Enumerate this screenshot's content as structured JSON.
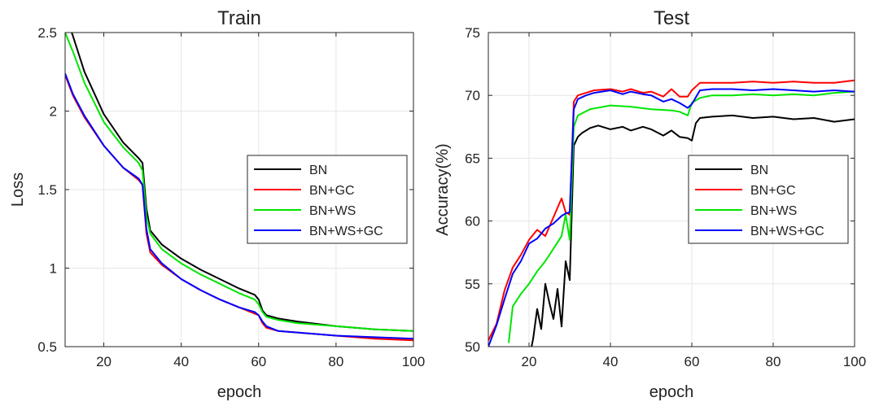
{
  "chart_data": [
    {
      "type": "line",
      "title": "Train",
      "xlabel": "epoch",
      "ylabel": "Loss",
      "xlim": [
        10,
        100
      ],
      "ylim": [
        0.5,
        2.5
      ],
      "xticks": [
        "20",
        "40",
        "60",
        "80",
        "100"
      ],
      "yticks": [
        "0.5",
        "1",
        "1.5",
        "2",
        "2.5"
      ],
      "grid": true,
      "legend_position": "center-right",
      "series": [
        {
          "name": "BN",
          "color": "#000000",
          "x": [
            10,
            12,
            15,
            20,
            25,
            29,
            30,
            31,
            32,
            35,
            40,
            45,
            50,
            55,
            59,
            60,
            61,
            62,
            65,
            70,
            80,
            90,
            100
          ],
          "y": [
            2.62,
            2.48,
            2.25,
            1.98,
            1.8,
            1.7,
            1.67,
            1.38,
            1.24,
            1.15,
            1.06,
            0.99,
            0.93,
            0.87,
            0.83,
            0.8,
            0.73,
            0.7,
            0.68,
            0.66,
            0.63,
            0.61,
            0.6
          ]
        },
        {
          "name": "BN+GC",
          "color": "#ff0000",
          "x": [
            10,
            12,
            15,
            20,
            25,
            29,
            30,
            31,
            32,
            35,
            40,
            45,
            50,
            55,
            59,
            60,
            61,
            62,
            65,
            70,
            80,
            90,
            100
          ],
          "y": [
            2.23,
            2.1,
            1.96,
            1.78,
            1.64,
            1.56,
            1.53,
            1.22,
            1.1,
            1.02,
            0.93,
            0.86,
            0.8,
            0.75,
            0.71,
            0.7,
            0.65,
            0.62,
            0.6,
            0.59,
            0.57,
            0.55,
            0.54
          ]
        },
        {
          "name": "BN+WS",
          "color": "#00e600",
          "x": [
            10,
            12,
            15,
            20,
            25,
            29,
            30,
            31,
            32,
            35,
            40,
            45,
            50,
            55,
            59,
            60,
            61,
            62,
            65,
            70,
            80,
            90,
            100
          ],
          "y": [
            2.5,
            2.38,
            2.18,
            1.93,
            1.77,
            1.67,
            1.62,
            1.33,
            1.22,
            1.12,
            1.03,
            0.96,
            0.9,
            0.84,
            0.8,
            0.77,
            0.72,
            0.69,
            0.67,
            0.65,
            0.63,
            0.61,
            0.6
          ]
        },
        {
          "name": "BN+WS+GC",
          "color": "#0000ff",
          "x": [
            10,
            12,
            15,
            20,
            25,
            29,
            30,
            31,
            32,
            35,
            40,
            45,
            50,
            55,
            59,
            60,
            61,
            62,
            65,
            70,
            80,
            90,
            100
          ],
          "y": [
            2.24,
            2.11,
            1.97,
            1.78,
            1.64,
            1.57,
            1.53,
            1.25,
            1.12,
            1.03,
            0.93,
            0.86,
            0.8,
            0.75,
            0.72,
            0.7,
            0.66,
            0.63,
            0.6,
            0.59,
            0.57,
            0.56,
            0.55
          ]
        }
      ]
    },
    {
      "type": "line",
      "title": "Test",
      "xlabel": "epoch",
      "ylabel": "Accuracy(%)",
      "xlim": [
        10,
        100
      ],
      "ylim": [
        50,
        75
      ],
      "xticks": [
        "20",
        "40",
        "60",
        "80",
        "100"
      ],
      "yticks": [
        "50",
        "55",
        "60",
        "65",
        "70",
        "75"
      ],
      "grid": true,
      "legend_position": "center-right",
      "series": [
        {
          "name": "BN",
          "color": "#000000",
          "x": [
            20,
            21,
            22,
            23,
            24,
            25,
            26,
            27,
            28,
            29,
            30,
            31,
            32,
            33,
            35,
            37,
            40,
            43,
            45,
            48,
            50,
            53,
            55,
            57,
            59,
            60,
            61,
            62,
            65,
            70,
            75,
            80,
            85,
            90,
            95,
            100
          ],
          "y": [
            49.0,
            50.6,
            53.0,
            51.4,
            55.0,
            53.5,
            52.2,
            54.6,
            51.6,
            56.8,
            55.3,
            66.0,
            66.7,
            67.0,
            67.4,
            67.6,
            67.3,
            67.5,
            67.2,
            67.5,
            67.3,
            66.8,
            67.2,
            66.7,
            66.6,
            66.4,
            67.8,
            68.2,
            68.3,
            68.4,
            68.2,
            68.3,
            68.1,
            68.2,
            67.9,
            68.1
          ]
        },
        {
          "name": "BN+GC",
          "color": "#ff0000",
          "x": [
            10,
            12,
            14,
            16,
            18,
            20,
            22,
            24,
            26,
            28,
            29,
            30,
            31,
            32,
            34,
            36,
            40,
            43,
            45,
            48,
            50,
            53,
            55,
            57,
            59,
            60,
            62,
            65,
            70,
            75,
            80,
            85,
            90,
            95,
            100
          ],
          "y": [
            50.5,
            51.8,
            54.5,
            56.3,
            57.3,
            58.5,
            59.3,
            58.8,
            60.3,
            61.8,
            60.7,
            60.5,
            69.5,
            70.0,
            70.2,
            70.4,
            70.5,
            70.3,
            70.5,
            70.2,
            70.3,
            69.9,
            70.5,
            69.9,
            69.9,
            70.4,
            71.0,
            71.0,
            71.0,
            71.1,
            71.0,
            71.1,
            71.0,
            71.0,
            71.2
          ]
        },
        {
          "name": "BN+WS",
          "color": "#00e600",
          "x": [
            15,
            16,
            18,
            20,
            22,
            24,
            26,
            28,
            29,
            30,
            31,
            32,
            35,
            40,
            45,
            50,
            55,
            57,
            59,
            60,
            62,
            65,
            70,
            75,
            80,
            85,
            90,
            95,
            100
          ],
          "y": [
            50.3,
            53.2,
            54.2,
            55.0,
            56.0,
            56.8,
            57.8,
            58.8,
            60.5,
            58.5,
            67.5,
            68.4,
            68.9,
            69.2,
            69.1,
            68.9,
            68.8,
            68.7,
            68.4,
            69.4,
            69.8,
            70.0,
            70.0,
            70.1,
            70.0,
            70.1,
            70.0,
            70.2,
            70.3
          ]
        },
        {
          "name": "BN+WS+GC",
          "color": "#0000ff",
          "x": [
            10,
            12,
            14,
            16,
            18,
            20,
            22,
            24,
            26,
            28,
            29,
            30,
            31,
            32,
            34,
            36,
            40,
            43,
            45,
            48,
            50,
            53,
            55,
            57,
            59,
            60,
            62,
            65,
            70,
            75,
            80,
            85,
            90,
            95,
            100
          ],
          "y": [
            50.0,
            51.7,
            53.8,
            55.8,
            56.8,
            58.2,
            58.6,
            59.4,
            59.8,
            60.4,
            60.6,
            60.7,
            68.9,
            69.7,
            70.0,
            70.2,
            70.4,
            70.1,
            70.3,
            70.1,
            70.0,
            69.5,
            69.7,
            69.4,
            69.0,
            69.3,
            70.4,
            70.5,
            70.5,
            70.4,
            70.5,
            70.4,
            70.3,
            70.4,
            70.3
          ]
        }
      ]
    }
  ]
}
